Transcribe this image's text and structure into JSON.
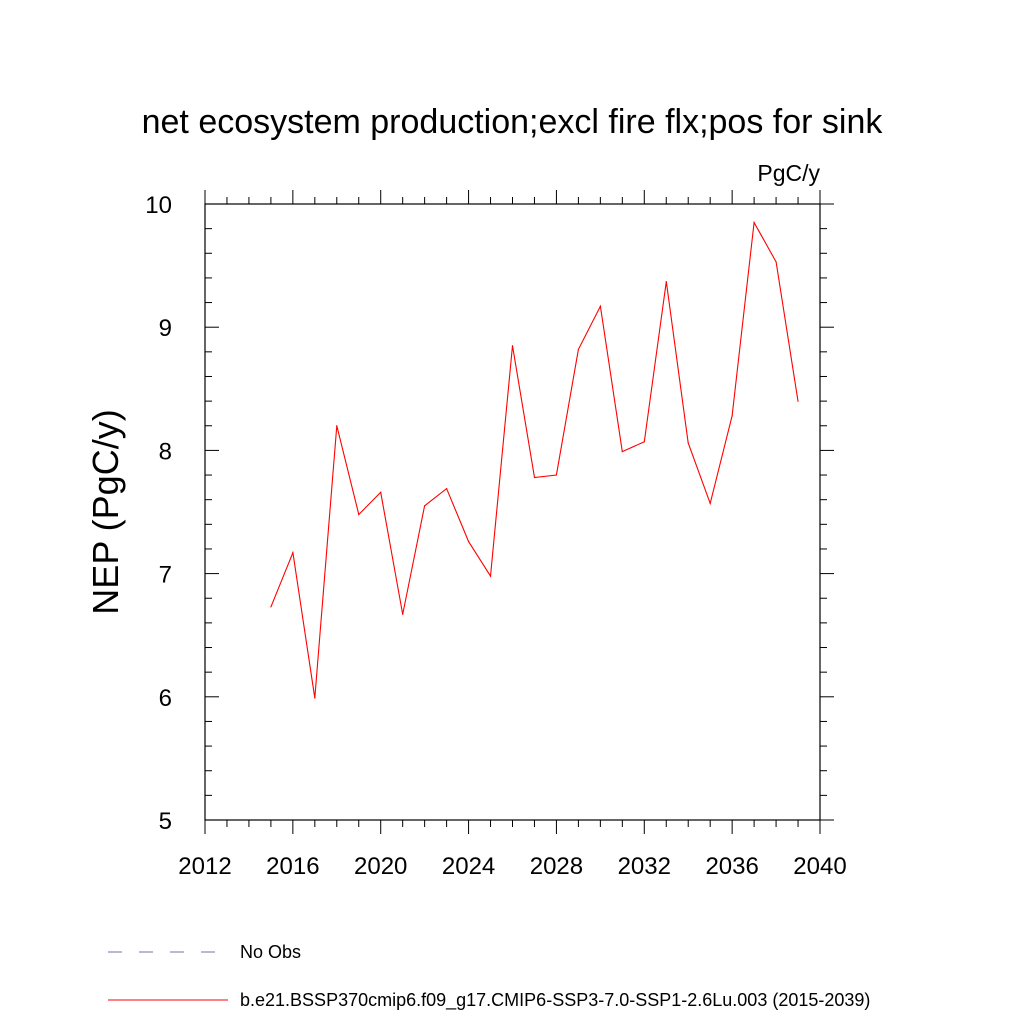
{
  "chart_data": {
    "type": "line",
    "title": "net ecosystem production;excl fire flx;pos for sink",
    "units_label": "PgC/y",
    "xlabel": "",
    "ylabel": "NEP  (PgC/y)",
    "xlim": [
      2012,
      2040
    ],
    "ylim": [
      5,
      10
    ],
    "x_ticks": [
      2012,
      2016,
      2020,
      2024,
      2028,
      2032,
      2036,
      2040
    ],
    "y_ticks": [
      5,
      6,
      7,
      8,
      9,
      10
    ],
    "x_tick_labels": [
      "2012",
      "2016",
      "2020",
      "2024",
      "2028",
      "2032",
      "2036",
      "2040"
    ],
    "y_tick_labels": [
      "5",
      "6",
      "7",
      "8",
      "9",
      "10"
    ],
    "series": [
      {
        "name": "b.e21.BSSP370cmip6.f09_g17.CMIP6-SSP3-7.0-SSP1-2.6Lu.003 (2015-2039)",
        "color": "#ff0000",
        "x": [
          2015,
          2016,
          2017,
          2018,
          2019,
          2020,
          2021,
          2022,
          2023,
          2024,
          2025,
          2026,
          2027,
          2028,
          2029,
          2030,
          2031,
          2032,
          2033,
          2034,
          2035,
          2036,
          2037,
          2038,
          2039
        ],
        "values": [
          6.73,
          7.17,
          5.99,
          8.2,
          7.48,
          7.66,
          6.67,
          7.55,
          7.69,
          7.26,
          6.98,
          8.85,
          7.78,
          7.8,
          8.82,
          9.17,
          7.99,
          8.07,
          9.37,
          8.06,
          7.57,
          8.28,
          9.85,
          9.53,
          8.4
        ]
      }
    ],
    "legend": [
      {
        "label": "No Obs",
        "style": "dashed",
        "color": "#7e6fa8"
      },
      {
        "label": "b.e21.BSSP370cmip6.f09_g17.CMIP6-SSP3-7.0-SSP1-2.6Lu.003 (2015-2039)",
        "style": "solid",
        "color": "#ff0000"
      }
    ],
    "legend_position": "bottom",
    "grid": false
  }
}
